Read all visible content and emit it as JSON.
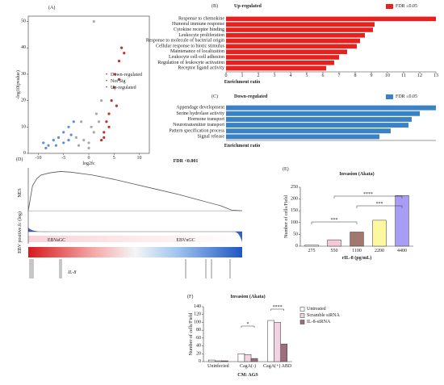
{
  "chart_data": [
    {
      "type": "scatter",
      "panel": "(A)",
      "xlabel": "log2fc",
      "ylabel": "-log10(pvalue)",
      "xlim": [
        -12,
        12
      ],
      "ylim": [
        0,
        52
      ],
      "xticks": [
        -10,
        -5,
        0,
        5,
        10
      ],
      "yticks": [
        0,
        10,
        20,
        30,
        40,
        50
      ],
      "series": [
        {
          "name": "Down-regulated",
          "color": "#5b8fd6",
          "x": [
            -9,
            -8,
            -7,
            -6,
            -5,
            -4,
            -3.5,
            -3,
            -6.5,
            -5,
            -4,
            -8.5
          ],
          "y": [
            4,
            3,
            5,
            6,
            8,
            10,
            7,
            12,
            3,
            4,
            5,
            2
          ]
        },
        {
          "name": "Not Sig",
          "color": "#a8a8a8",
          "x": [
            -2,
            -1,
            0,
            1,
            2,
            -2.5,
            0.5,
            1.5,
            2.5,
            -1.5,
            1,
            0
          ],
          "y": [
            3,
            5,
            2,
            8,
            12,
            6,
            10,
            15,
            20,
            12,
            50,
            4
          ]
        },
        {
          "name": "Up-regulated",
          "color": "#c0302a",
          "x": [
            3,
            3.5,
            4,
            4.5,
            5,
            5.2,
            6,
            6.5,
            7,
            3,
            4,
            5.5,
            2.5,
            6
          ],
          "y": [
            8,
            12,
            15,
            20,
            25,
            30,
            35,
            40,
            38,
            6,
            10,
            18,
            5,
            28
          ]
        }
      ]
    },
    {
      "type": "hbar",
      "panel": "(B)",
      "title": "Up-regulated",
      "legend": "FDR ≤0.05",
      "xlabel": "Enrichment ratio",
      "color": "#e8211e",
      "categories": [
        "Response to chemokine",
        "Humoral immune response",
        "Cytokine receptor binding",
        "Leukocyte proliferation",
        "Response to molecule of bacterial origin",
        "Cellular response to biotic stimulus",
        "Maintenance of localization",
        "Leukocyte cell-cell adhesion",
        "Regulation of leukocyte activation",
        "Receptor ligand activity"
      ],
      "values": [
        13,
        9.2,
        9.1,
        8.6,
        8.3,
        8.1,
        7.5,
        7.0,
        6.7,
        6.2
      ],
      "xlim": [
        0,
        13
      ],
      "xticks": [
        0,
        1,
        2,
        3,
        4,
        5,
        6,
        7,
        8,
        9,
        10,
        11,
        12,
        13
      ]
    },
    {
      "type": "hbar",
      "panel": "(C)",
      "title": "Down-regulated",
      "legend": "FDR ≤0.05",
      "xlabel": "Enrichment ratio",
      "color": "#3b82c4",
      "categories": [
        "Appendage development",
        "Serine hydrolase activity",
        "Hormone transport",
        "Neurotransmitter transport",
        "Pattern specification process",
        "Signal release"
      ],
      "values": [
        13,
        12,
        11.5,
        11.3,
        10.2,
        9.5
      ],
      "xlim": [
        0,
        13
      ]
    },
    {
      "type": "gsea",
      "panel": "(D)",
      "title": "FDR <0.001",
      "ylabel": "NES",
      "ylabel2": "EBV positive.fc (log)",
      "groups": [
        "EBVaGC",
        "EBVnGC"
      ],
      "gene": "IL-8",
      "x": [
        0,
        2,
        4,
        6,
        10,
        15,
        20,
        30,
        40,
        50,
        60,
        70,
        80,
        90,
        95,
        100
      ],
      "values": [
        0,
        0.35,
        0.45,
        0.5,
        0.53,
        0.55,
        0.54,
        0.5,
        0.44,
        0.37,
        0.3,
        0.23,
        0.15,
        0.07,
        0.01,
        0
      ],
      "xlim": [
        0,
        100
      ],
      "ylim": [
        -0.1,
        0.6
      ],
      "color": "#555"
    },
    {
      "type": "bar",
      "panel": "(E)",
      "title": "Invasion (Akata)",
      "xlabel": "rIL-8 (pg/mL)",
      "ylabel": "Number of cells/Field",
      "categories": [
        "275",
        "550",
        "1100",
        "2200",
        "4400"
      ],
      "values": [
        5,
        27,
        60,
        110,
        215
      ],
      "colors": [
        "#ffffff",
        "#f7c6d9",
        "#a0786e",
        "#fdf7a0",
        "#a99cf5"
      ],
      "ylim": [
        0,
        250
      ],
      "yticks": [
        0,
        50,
        100,
        150,
        200,
        250
      ],
      "significance": [
        "***",
        "***",
        "****"
      ]
    },
    {
      "type": "grouped",
      "panel": "(F)",
      "title": "Invasion (Akata)",
      "xlabel": "CM: AGS",
      "ylabel": "Number of cells/Field",
      "categories": [
        "Uninfected",
        "CagA(-)",
        "CagA(+) ABD"
      ],
      "series": [
        {
          "name": "Untreated",
          "color": "#ffffff",
          "values": [
            4,
            20,
            105
          ]
        },
        {
          "name": "Scramble siRNA",
          "color": "#f3d3e1",
          "values": [
            2,
            18,
            100
          ]
        },
        {
          "name": "IL-8-siRNA",
          "color": "#9c6e7e",
          "values": [
            2,
            8,
            45
          ]
        }
      ],
      "ylim": [
        0,
        140
      ],
      "yticks": [
        0,
        20,
        40,
        60,
        80,
        100,
        120,
        140
      ],
      "significance": [
        "*",
        "****"
      ]
    }
  ]
}
